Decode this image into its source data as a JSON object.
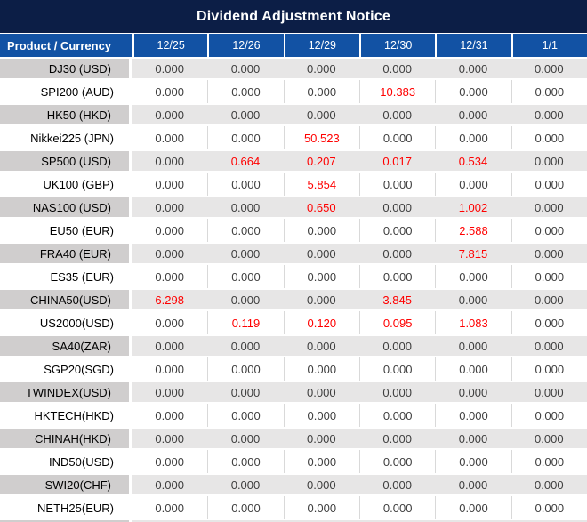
{
  "title": "Dividend Adjustment Notice",
  "table": {
    "product_header": "Product / Currency",
    "date_headers": [
      "12/25",
      "12/26",
      "12/29",
      "12/30",
      "12/31",
      "1/1"
    ],
    "rows": [
      {
        "product": "DJ30 (USD)",
        "values": [
          "0.000",
          "0.000",
          "0.000",
          "0.000",
          "0.000",
          "0.000"
        ],
        "red": []
      },
      {
        "product": "SPI200 (AUD)",
        "values": [
          "0.000",
          "0.000",
          "0.000",
          "10.383",
          "0.000",
          "0.000"
        ],
        "red": [
          3
        ]
      },
      {
        "product": "HK50 (HKD)",
        "values": [
          "0.000",
          "0.000",
          "0.000",
          "0.000",
          "0.000",
          "0.000"
        ],
        "red": []
      },
      {
        "product": "Nikkei225 (JPN)",
        "values": [
          "0.000",
          "0.000",
          "50.523",
          "0.000",
          "0.000",
          "0.000"
        ],
        "red": [
          2
        ]
      },
      {
        "product": "SP500 (USD)",
        "values": [
          "0.000",
          "0.664",
          "0.207",
          "0.017",
          "0.534",
          "0.000"
        ],
        "red": [
          1,
          2,
          3,
          4
        ]
      },
      {
        "product": "UK100 (GBP)",
        "values": [
          "0.000",
          "0.000",
          "5.854",
          "0.000",
          "0.000",
          "0.000"
        ],
        "red": [
          2
        ]
      },
      {
        "product": "NAS100 (USD)",
        "values": [
          "0.000",
          "0.000",
          "0.650",
          "0.000",
          "1.002",
          "0.000"
        ],
        "red": [
          2,
          4
        ]
      },
      {
        "product": "EU50 (EUR)",
        "values": [
          "0.000",
          "0.000",
          "0.000",
          "0.000",
          "2.588",
          "0.000"
        ],
        "red": [
          4
        ]
      },
      {
        "product": "FRA40 (EUR)",
        "values": [
          "0.000",
          "0.000",
          "0.000",
          "0.000",
          "7.815",
          "0.000"
        ],
        "red": [
          4
        ]
      },
      {
        "product": "ES35 (EUR)",
        "values": [
          "0.000",
          "0.000",
          "0.000",
          "0.000",
          "0.000",
          "0.000"
        ],
        "red": []
      },
      {
        "product": "CHINA50(USD)",
        "values": [
          "6.298",
          "0.000",
          "0.000",
          "3.845",
          "0.000",
          "0.000"
        ],
        "red": [
          0,
          3
        ]
      },
      {
        "product": "US2000(USD)",
        "values": [
          "0.000",
          "0.119",
          "0.120",
          "0.095",
          "1.083",
          "0.000"
        ],
        "red": [
          1,
          2,
          3,
          4
        ]
      },
      {
        "product": "SA40(ZAR)",
        "values": [
          "0.000",
          "0.000",
          "0.000",
          "0.000",
          "0.000",
          "0.000"
        ],
        "red": []
      },
      {
        "product": "SGP20(SGD)",
        "values": [
          "0.000",
          "0.000",
          "0.000",
          "0.000",
          "0.000",
          "0.000"
        ],
        "red": []
      },
      {
        "product": "TWINDEX(USD)",
        "values": [
          "0.000",
          "0.000",
          "0.000",
          "0.000",
          "0.000",
          "0.000"
        ],
        "red": []
      },
      {
        "product": "HKTECH(HKD)",
        "values": [
          "0.000",
          "0.000",
          "0.000",
          "0.000",
          "0.000",
          "0.000"
        ],
        "red": []
      },
      {
        "product": "CHINAH(HKD)",
        "values": [
          "0.000",
          "0.000",
          "0.000",
          "0.000",
          "0.000",
          "0.000"
        ],
        "red": []
      },
      {
        "product": "IND50(USD)",
        "values": [
          "0.000",
          "0.000",
          "0.000",
          "0.000",
          "0.000",
          "0.000"
        ],
        "red": []
      },
      {
        "product": "SWI20(CHF)",
        "values": [
          "0.000",
          "0.000",
          "0.000",
          "0.000",
          "0.000",
          "0.000"
        ],
        "red": []
      },
      {
        "product": "NETH25(EUR)",
        "values": [
          "0.000",
          "0.000",
          "0.000",
          "0.000",
          "0.000",
          "0.000"
        ],
        "red": []
      }
    ]
  },
  "colors": {
    "title_bg": "#0C1E46",
    "header_bg": "#1252A4",
    "header_text": "#FFFFFF",
    "row_alt_bg": "#E7E6E6",
    "label_alt_bg": "#D0CECE",
    "row_bg": "#FFFFFF",
    "value_text": "#3F3F3F",
    "product_text": "#000000",
    "highlight_red": "#FF0000",
    "grid_line": "#D9D9D9"
  }
}
